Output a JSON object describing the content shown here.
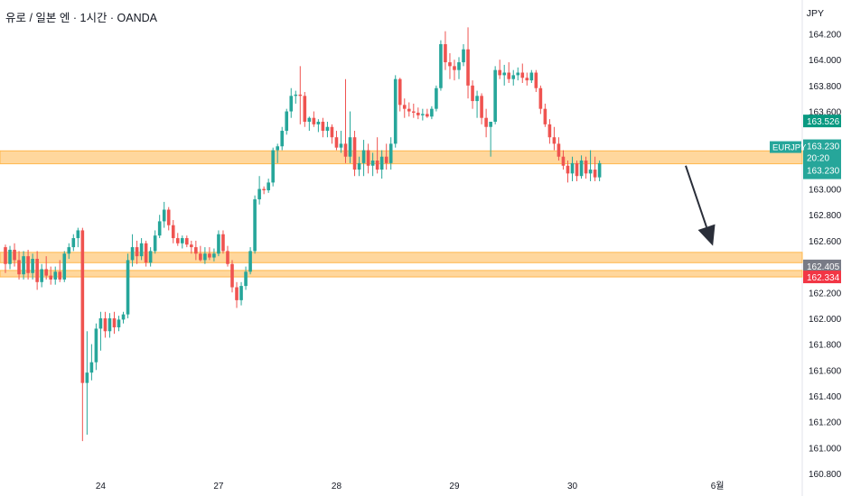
{
  "header": {
    "title": "유로 / 일본 엔 · 1시간 · OANDA",
    "currency": "JPY"
  },
  "chart_data": {
    "type": "candlestick",
    "ylim": [
      160.8,
      164.35
    ],
    "y_ticks": [
      164.2,
      164.0,
      163.8,
      163.6,
      163.0,
      162.8,
      162.6,
      162.2,
      162.0,
      161.8,
      161.6,
      161.4,
      161.2,
      161.0,
      160.8
    ],
    "y_tick_labels": [
      "164.200",
      "164.000",
      "163.800",
      "163.600",
      "163.000",
      "162.800",
      "162.600",
      "162.200",
      "162.000",
      "161.800",
      "161.600",
      "161.400",
      "161.200",
      "161.000",
      "160.800"
    ],
    "x_labels": [
      {
        "label": "24",
        "bar": 21
      },
      {
        "label": "27",
        "bar": 47
      },
      {
        "label": "28",
        "bar": 73
      },
      {
        "label": "29",
        "bar": 99
      },
      {
        "label": "30",
        "bar": 125
      },
      {
        "label": "6월",
        "bar": 157
      }
    ],
    "price_badges": [
      {
        "text": "163.526",
        "value": 163.526,
        "color": "#089981"
      },
      {
        "symbol": "EURJPY",
        "text": "163.230",
        "countdown": "20:20",
        "value": 163.23,
        "color": "#26a69a"
      },
      {
        "text": "162.405",
        "value": 162.405,
        "color": "#787b86"
      },
      {
        "text": "162.334",
        "value": 162.334,
        "color": "#f23645"
      }
    ],
    "zones": [
      {
        "from": 163.195,
        "to": 163.295
      },
      {
        "from": 162.43,
        "to": 162.51
      },
      {
        "from": 162.32,
        "to": 162.37
      }
    ],
    "arrow": {
      "from_bar": 150,
      "from_price": 163.18,
      "to_bar": 156,
      "to_price": 162.56
    },
    "colors": {
      "up": "#26a69a",
      "down": "#ef5350",
      "zone": "#ffb74d",
      "arrow": "#2a2e39"
    },
    "candles": [
      [
        162.55,
        162.57,
        162.35,
        162.42
      ],
      [
        162.42,
        162.56,
        162.38,
        162.53
      ],
      [
        162.53,
        162.58,
        162.4,
        162.45
      ],
      [
        162.45,
        162.52,
        162.3,
        162.34
      ],
      [
        162.34,
        162.52,
        162.3,
        162.48
      ],
      [
        162.48,
        162.53,
        162.3,
        162.35
      ],
      [
        162.35,
        162.5,
        162.3,
        162.46
      ],
      [
        162.46,
        162.52,
        162.22,
        162.28
      ],
      [
        162.28,
        162.42,
        162.24,
        162.38
      ],
      [
        162.38,
        162.48,
        162.3,
        162.33
      ],
      [
        162.33,
        162.4,
        162.26,
        162.3
      ],
      [
        162.3,
        162.4,
        162.26,
        162.36
      ],
      [
        162.36,
        162.45,
        162.28,
        162.3
      ],
      [
        162.3,
        162.52,
        162.28,
        162.5
      ],
      [
        162.5,
        162.58,
        162.46,
        162.55
      ],
      [
        162.55,
        162.65,
        162.52,
        162.62
      ],
      [
        162.62,
        162.7,
        162.55,
        162.68
      ],
      [
        162.68,
        162.7,
        161.05,
        161.5
      ],
      [
        161.5,
        161.9,
        161.1,
        161.58
      ],
      [
        161.58,
        161.8,
        161.52,
        161.66
      ],
      [
        161.66,
        161.96,
        161.6,
        161.92
      ],
      [
        161.92,
        162.05,
        161.75,
        162.0
      ],
      [
        162.0,
        162.05,
        161.85,
        161.9
      ],
      [
        161.9,
        162.04,
        161.85,
        162.0
      ],
      [
        162.0,
        162.05,
        161.88,
        161.93
      ],
      [
        161.93,
        162.02,
        161.9,
        161.99
      ],
      [
        161.99,
        162.05,
        161.96,
        162.03
      ],
      [
        162.03,
        162.5,
        162.0,
        162.45
      ],
      [
        162.45,
        162.65,
        162.4,
        162.55
      ],
      [
        162.55,
        162.6,
        162.42,
        162.48
      ],
      [
        162.48,
        162.62,
        162.45,
        162.58
      ],
      [
        162.58,
        162.6,
        162.4,
        162.43
      ],
      [
        162.43,
        162.55,
        162.4,
        162.52
      ],
      [
        162.52,
        162.68,
        162.5,
        162.64
      ],
      [
        162.64,
        162.8,
        162.62,
        162.75
      ],
      [
        162.75,
        162.9,
        162.7,
        162.84
      ],
      [
        162.84,
        162.86,
        162.68,
        162.72
      ],
      [
        162.72,
        162.76,
        162.58,
        162.62
      ],
      [
        162.62,
        162.66,
        162.56,
        162.58
      ],
      [
        162.58,
        162.64,
        162.54,
        162.62
      ],
      [
        162.62,
        162.64,
        162.55,
        162.57
      ],
      [
        162.57,
        162.6,
        162.5,
        162.55
      ],
      [
        162.55,
        162.6,
        162.45,
        162.5
      ],
      [
        162.5,
        162.56,
        162.44,
        162.45
      ],
      [
        162.45,
        162.55,
        162.42,
        162.5
      ],
      [
        162.5,
        162.55,
        162.45,
        162.47
      ],
      [
        162.47,
        162.54,
        162.44,
        162.5
      ],
      [
        162.5,
        162.68,
        162.48,
        162.65
      ],
      [
        162.65,
        162.68,
        162.5,
        162.52
      ],
      [
        162.52,
        162.56,
        162.4,
        162.42
      ],
      [
        162.42,
        162.45,
        162.2,
        162.24
      ],
      [
        162.24,
        162.28,
        162.08,
        162.14
      ],
      [
        162.14,
        162.28,
        162.1,
        162.25
      ],
      [
        162.25,
        162.4,
        162.22,
        162.36
      ],
      [
        162.36,
        162.55,
        162.34,
        162.52
      ],
      [
        162.52,
        162.95,
        162.5,
        162.92
      ],
      [
        162.92,
        163.1,
        162.88,
        163.0
      ],
      [
        163.0,
        163.02,
        162.96,
        162.99
      ],
      [
        162.99,
        163.08,
        162.97,
        163.05
      ],
      [
        163.05,
        163.32,
        163.02,
        163.3
      ],
      [
        163.3,
        163.35,
        163.2,
        163.33
      ],
      [
        163.33,
        163.48,
        163.3,
        163.45
      ],
      [
        163.45,
        163.62,
        163.42,
        163.6
      ],
      [
        163.6,
        163.78,
        163.55,
        163.72
      ],
      [
        163.72,
        163.76,
        163.66,
        163.73
      ],
      [
        163.73,
        163.95,
        163.5,
        163.72
      ],
      [
        163.72,
        163.75,
        163.48,
        163.52
      ],
      [
        163.52,
        163.56,
        163.45,
        163.55
      ],
      [
        163.55,
        163.6,
        163.48,
        163.5
      ],
      [
        163.5,
        163.54,
        163.44,
        163.52
      ],
      [
        163.52,
        163.55,
        163.4,
        163.45
      ],
      [
        163.45,
        163.52,
        163.4,
        163.48
      ],
      [
        163.48,
        163.5,
        163.35,
        163.4
      ],
      [
        163.4,
        163.45,
        163.3,
        163.32
      ],
      [
        163.32,
        163.45,
        163.28,
        163.35
      ],
      [
        163.35,
        163.85,
        163.2,
        163.25
      ],
      [
        163.25,
        163.6,
        163.2,
        163.4
      ],
      [
        163.4,
        163.45,
        163.1,
        163.15
      ],
      [
        163.15,
        163.25,
        163.1,
        163.2
      ],
      [
        163.2,
        163.38,
        163.1,
        163.3
      ],
      [
        163.3,
        163.35,
        163.12,
        163.18
      ],
      [
        163.18,
        163.28,
        163.1,
        163.22
      ],
      [
        163.22,
        163.4,
        163.12,
        163.15
      ],
      [
        163.15,
        163.3,
        163.08,
        163.25
      ],
      [
        163.25,
        163.35,
        163.15,
        163.2
      ],
      [
        163.2,
        163.4,
        163.15,
        163.35
      ],
      [
        163.35,
        163.88,
        163.32,
        163.85
      ],
      [
        163.85,
        163.86,
        163.6,
        163.65
      ],
      [
        163.65,
        163.7,
        163.55,
        163.62
      ],
      [
        163.62,
        163.67,
        163.56,
        163.6
      ],
      [
        163.6,
        163.66,
        163.55,
        163.59
      ],
      [
        163.59,
        163.63,
        163.54,
        163.57
      ],
      [
        163.57,
        163.62,
        163.53,
        163.58
      ],
      [
        163.58,
        163.62,
        163.55,
        163.56
      ],
      [
        163.56,
        163.64,
        163.54,
        163.62
      ],
      [
        163.62,
        163.8,
        163.6,
        163.78
      ],
      [
        163.78,
        164.15,
        163.76,
        164.12
      ],
      [
        164.12,
        164.22,
        163.92,
        163.98
      ],
      [
        163.98,
        164.05,
        163.85,
        163.95
      ],
      [
        163.95,
        164.0,
        163.84,
        163.92
      ],
      [
        163.92,
        164.02,
        163.85,
        163.98
      ],
      [
        163.98,
        164.12,
        163.95,
        164.08
      ],
      [
        164.08,
        164.25,
        163.7,
        163.8
      ],
      [
        163.8,
        163.84,
        163.62,
        163.68
      ],
      [
        163.68,
        163.76,
        163.55,
        163.72
      ],
      [
        163.72,
        163.74,
        163.5,
        163.55
      ],
      [
        163.55,
        163.62,
        163.4,
        163.48
      ],
      [
        163.48,
        163.52,
        163.25,
        163.52
      ],
      [
        163.52,
        163.95,
        163.5,
        163.92
      ],
      [
        163.92,
        164.0,
        163.85,
        163.88
      ],
      [
        163.88,
        163.96,
        163.8,
        163.9
      ],
      [
        163.9,
        163.98,
        163.82,
        163.85
      ],
      [
        163.85,
        163.92,
        163.8,
        163.88
      ],
      [
        163.88,
        163.94,
        163.84,
        163.9
      ],
      [
        163.9,
        163.97,
        163.82,
        163.86
      ],
      [
        163.86,
        163.9,
        163.8,
        163.84
      ],
      [
        163.84,
        163.92,
        163.82,
        163.9
      ],
      [
        163.9,
        163.92,
        163.75,
        163.78
      ],
      [
        163.78,
        163.8,
        163.58,
        163.62
      ],
      [
        163.62,
        163.66,
        163.48,
        163.5
      ],
      [
        163.5,
        163.54,
        163.35,
        163.4
      ],
      [
        163.4,
        163.48,
        163.3,
        163.35
      ],
      [
        163.35,
        163.4,
        163.22,
        163.25
      ],
      [
        163.25,
        163.3,
        163.15,
        163.18
      ],
      [
        163.18,
        163.22,
        163.05,
        163.12
      ],
      [
        163.12,
        163.25,
        163.06,
        163.2
      ],
      [
        163.2,
        163.22,
        163.06,
        163.1
      ],
      [
        163.1,
        163.26,
        163.08,
        163.22
      ],
      [
        163.22,
        163.25,
        163.08,
        163.12
      ],
      [
        163.12,
        163.3,
        163.06,
        163.15
      ],
      [
        163.15,
        163.25,
        163.06,
        163.09
      ],
      [
        163.09,
        163.22,
        163.06,
        163.2
      ]
    ]
  }
}
